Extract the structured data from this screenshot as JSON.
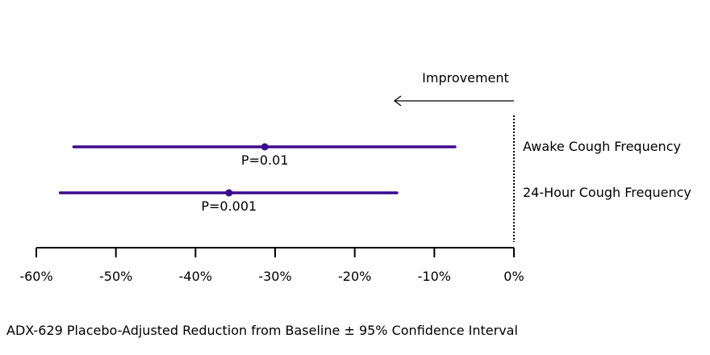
{
  "chart_data": {
    "type": "forest",
    "title": "",
    "xlabel": "ADX-629 Placebo-Adjusted Reduction from Baseline ± 95% Confidence Interval",
    "xlim": [
      -60,
      0
    ],
    "xticks": [
      -60,
      -50,
      -40,
      -30,
      -20,
      -10,
      0
    ],
    "xtick_labels": [
      "-60%",
      "-50%",
      "-40%",
      "-30%",
      "-20%",
      "-10%",
      "0%"
    ],
    "reference_line": 0,
    "annotation": "Improvement",
    "series": [
      {
        "name": "Awake Cough Frequency",
        "estimate": -31.3,
        "ci_low": -55.3,
        "ci_high": -7.4,
        "p_label": "P=0.01"
      },
      {
        "name": "24-Hour Cough Frequency",
        "estimate": -35.8,
        "ci_low": -57.0,
        "ci_high": -14.7,
        "p_label": "P=0.001"
      }
    ],
    "color": "#3b0b8e"
  }
}
